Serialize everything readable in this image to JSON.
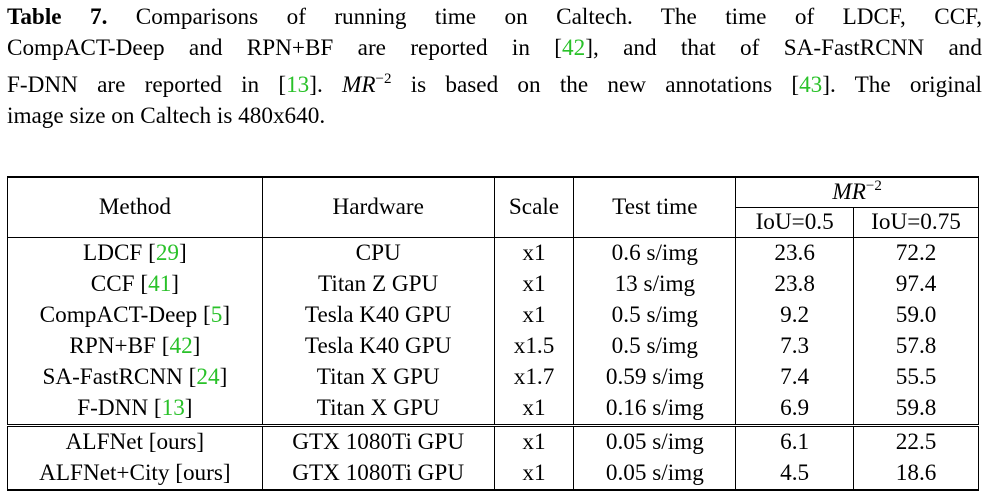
{
  "caption": {
    "label": "Table 7.",
    "line1_text": " Comparisons of running time on Caltech. The time of LDCF, CCF,",
    "line2_a": "CompACT-Deep and RPN+BF are reported in [",
    "line2_cite": "42",
    "line2_b": "], and that of SA-FastRCNN and",
    "line3_a": "F-DNN are reported in [",
    "line3_cite1": "13",
    "line3_b": "]. ",
    "line3_math": "MR",
    "line3_sup": "−2",
    "line3_c": " is based on the new annotations [",
    "line3_cite2": "43",
    "line3_d": "]. The original",
    "line4": "image size on Caltech is 480x640."
  },
  "table": {
    "headers": {
      "method": "Method",
      "hardware": "Hardware",
      "scale": "Scale",
      "test_time": "Test time",
      "mr_base": "MR",
      "mr_sup": "−2",
      "iou05": "IoU=0.5",
      "iou075": "IoU=0.75"
    },
    "rows": [
      {
        "method": "LDCF [",
        "cite": "29",
        "close": "]",
        "hardware": "CPU",
        "scale": "x1",
        "time": "0.6 s/img",
        "iou05": "23.6",
        "iou075": "72.2"
      },
      {
        "method": "CCF [",
        "cite": "41",
        "close": "]",
        "hardware": "Titan Z GPU",
        "scale": "x1",
        "time": "13 s/img",
        "iou05": "23.8",
        "iou075": "97.4"
      },
      {
        "method": "CompACT-Deep [",
        "cite": "5",
        "close": "]",
        "hardware": "Tesla K40 GPU",
        "scale": "x1",
        "time": "0.5 s/img",
        "iou05": "9.2",
        "iou075": "59.0"
      },
      {
        "method": "RPN+BF [",
        "cite": "42",
        "close": "]",
        "hardware": "Tesla K40 GPU",
        "scale": "x1.5",
        "time": "0.5 s/img",
        "iou05": "7.3",
        "iou075": "57.8"
      },
      {
        "method": "SA-FastRCNN [",
        "cite": "24",
        "close": "]",
        "hardware": "Titan X GPU",
        "scale": "x1.7",
        "time": "0.59 s/img",
        "iou05": "7.4",
        "iou075": "55.5"
      },
      {
        "method": "F-DNN [",
        "cite": "13",
        "close": "]",
        "hardware": "Titan X GPU",
        "scale": "x1",
        "time": "0.16 s/img",
        "iou05": "6.9",
        "iou075": "59.8"
      },
      {
        "method": "ALFNet [ours]",
        "cite": "",
        "close": "",
        "hardware": "GTX 1080Ti GPU",
        "scale": "x1",
        "time": "0.05 s/img",
        "iou05": "6.1",
        "iou075": "22.5"
      },
      {
        "method": "ALFNet+City [ours]",
        "cite": "",
        "close": "",
        "hardware": "GTX 1080Ti GPU",
        "scale": "x1",
        "time": "0.05 s/img",
        "iou05": "4.5",
        "iou075": "18.6"
      }
    ]
  },
  "colors": {
    "citation": "#29c129",
    "text": "#000000",
    "background": "#ffffff"
  }
}
